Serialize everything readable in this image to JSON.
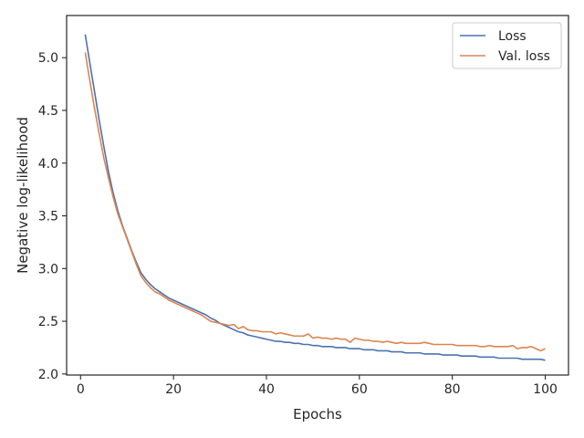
{
  "chart_data": {
    "type": "line",
    "title": "",
    "xlabel": "Epochs",
    "ylabel": "Negative log-likelihood",
    "xlim": [
      -3,
      105
    ],
    "ylim": [
      1.99,
      5.4
    ],
    "xticks": [
      0,
      20,
      40,
      60,
      80,
      100
    ],
    "yticks": [
      2.0,
      2.5,
      3.0,
      3.5,
      4.0,
      4.5,
      5.0
    ],
    "ytick_labels": [
      "2.0",
      "2.5",
      "3.0",
      "3.5",
      "4.0",
      "4.5",
      "5.0"
    ],
    "xtick_labels": [
      "0",
      "20",
      "40",
      "60",
      "80",
      "100"
    ],
    "grid": false,
    "legend_position": "top-right",
    "series": [
      {
        "name": "Loss",
        "color": "#4c72b0",
        "x": [
          1,
          2,
          3,
          4,
          5,
          6,
          7,
          8,
          9,
          10,
          11,
          12,
          13,
          14,
          15,
          16,
          17,
          18,
          19,
          20,
          21,
          22,
          23,
          24,
          25,
          26,
          27,
          28,
          29,
          30,
          31,
          32,
          33,
          34,
          35,
          36,
          37,
          38,
          39,
          40,
          41,
          42,
          43,
          44,
          45,
          46,
          47,
          48,
          49,
          50,
          51,
          52,
          53,
          54,
          55,
          56,
          57,
          58,
          59,
          60,
          61,
          62,
          63,
          64,
          65,
          66,
          67,
          68,
          69,
          70,
          71,
          72,
          73,
          74,
          75,
          76,
          77,
          78,
          79,
          80,
          81,
          82,
          83,
          84,
          85,
          86,
          87,
          88,
          89,
          90,
          91,
          92,
          93,
          94,
          95,
          96,
          97,
          98,
          99,
          100
        ],
        "values": [
          5.22,
          4.95,
          4.68,
          4.41,
          4.16,
          3.92,
          3.72,
          3.55,
          3.41,
          3.29,
          3.17,
          3.06,
          2.96,
          2.9,
          2.85,
          2.81,
          2.78,
          2.75,
          2.72,
          2.7,
          2.68,
          2.66,
          2.64,
          2.62,
          2.6,
          2.58,
          2.56,
          2.53,
          2.51,
          2.48,
          2.46,
          2.44,
          2.42,
          2.4,
          2.39,
          2.37,
          2.36,
          2.35,
          2.34,
          2.33,
          2.32,
          2.31,
          2.31,
          2.3,
          2.3,
          2.29,
          2.29,
          2.28,
          2.28,
          2.27,
          2.27,
          2.26,
          2.26,
          2.26,
          2.25,
          2.25,
          2.25,
          2.24,
          2.24,
          2.24,
          2.23,
          2.23,
          2.23,
          2.22,
          2.22,
          2.22,
          2.21,
          2.21,
          2.21,
          2.2,
          2.2,
          2.2,
          2.2,
          2.19,
          2.19,
          2.19,
          2.19,
          2.18,
          2.18,
          2.18,
          2.18,
          2.17,
          2.17,
          2.17,
          2.17,
          2.16,
          2.16,
          2.16,
          2.16,
          2.15,
          2.15,
          2.15,
          2.15,
          2.15,
          2.14,
          2.14,
          2.14,
          2.14,
          2.14,
          2.13
        ]
      },
      {
        "name": "Val. loss",
        "color": "#dd8452",
        "x": [
          1,
          2,
          3,
          4,
          5,
          6,
          7,
          8,
          9,
          10,
          11,
          12,
          13,
          14,
          15,
          16,
          17,
          18,
          19,
          20,
          21,
          22,
          23,
          24,
          25,
          26,
          27,
          28,
          29,
          30,
          31,
          32,
          33,
          34,
          35,
          36,
          37,
          38,
          39,
          40,
          41,
          42,
          43,
          44,
          45,
          46,
          47,
          48,
          49,
          50,
          51,
          52,
          53,
          54,
          55,
          56,
          57,
          58,
          59,
          60,
          61,
          62,
          63,
          64,
          65,
          66,
          67,
          68,
          69,
          70,
          71,
          72,
          73,
          74,
          75,
          76,
          77,
          78,
          79,
          80,
          81,
          82,
          83,
          84,
          85,
          86,
          87,
          88,
          89,
          90,
          91,
          92,
          93,
          94,
          95,
          96,
          97,
          98,
          99,
          100
        ],
        "values": [
          5.05,
          4.78,
          4.52,
          4.28,
          4.05,
          3.86,
          3.68,
          3.52,
          3.4,
          3.28,
          3.16,
          3.04,
          2.93,
          2.87,
          2.82,
          2.78,
          2.76,
          2.73,
          2.7,
          2.68,
          2.66,
          2.64,
          2.62,
          2.6,
          2.58,
          2.56,
          2.53,
          2.5,
          2.49,
          2.48,
          2.47,
          2.46,
          2.47,
          2.43,
          2.45,
          2.42,
          2.41,
          2.41,
          2.4,
          2.4,
          2.4,
          2.38,
          2.39,
          2.38,
          2.37,
          2.36,
          2.36,
          2.36,
          2.38,
          2.34,
          2.35,
          2.34,
          2.34,
          2.33,
          2.34,
          2.33,
          2.33,
          2.3,
          2.34,
          2.33,
          2.32,
          2.32,
          2.31,
          2.31,
          2.3,
          2.31,
          2.3,
          2.29,
          2.3,
          2.29,
          2.29,
          2.29,
          2.29,
          2.3,
          2.29,
          2.28,
          2.28,
          2.28,
          2.28,
          2.28,
          2.27,
          2.27,
          2.27,
          2.27,
          2.27,
          2.26,
          2.26,
          2.27,
          2.26,
          2.26,
          2.26,
          2.26,
          2.27,
          2.24,
          2.25,
          2.25,
          2.26,
          2.24,
          2.22,
          2.24
        ]
      }
    ]
  }
}
